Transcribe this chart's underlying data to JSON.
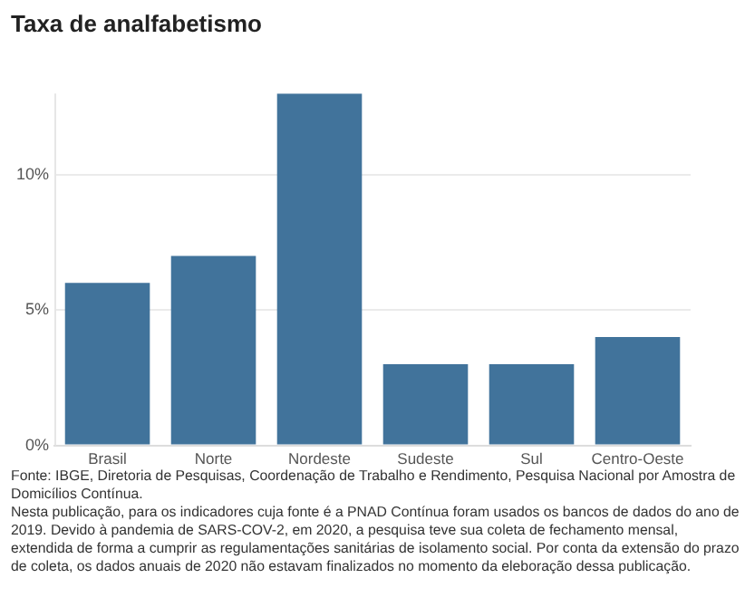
{
  "chart_data": {
    "type": "bar",
    "title": "Taxa de analfabetismo",
    "categories": [
      "Brasil",
      "Norte",
      "Nordeste",
      "Sudeste",
      "Sul",
      "Centro-Oeste"
    ],
    "values": [
      6,
      7,
      13,
      3,
      3,
      4
    ],
    "color": "#41739b",
    "ylim": [
      0,
      13
    ],
    "yticks": [
      {
        "value": 0,
        "label": "0%"
      },
      {
        "value": 5,
        "label": "5%"
      },
      {
        "value": 10,
        "label": "10%"
      }
    ],
    "grid": "y",
    "annotations": [
      "Fonte: IBGE, Diretoria de Pesquisas, Coordenação de Trabalho e Rendimento, Pesquisa Nacional por Amostra de Domicílios Contínua.",
      "Nesta publicação, para os indicadores cuja fonte é a PNAD Contínua foram usados os bancos de dados do ano de 2019. Devido à pandemia de SARS-COV-2, em 2020, a pesquisa teve sua coleta de fechamento mensal, extendida de forma a cumprir as regulamentações sanitárias de isolamento social. Por conta da extensão do prazo de coleta, os dados anuais de 2020 não estavam finalizados no momento da eleboração dessa publicação."
    ]
  }
}
